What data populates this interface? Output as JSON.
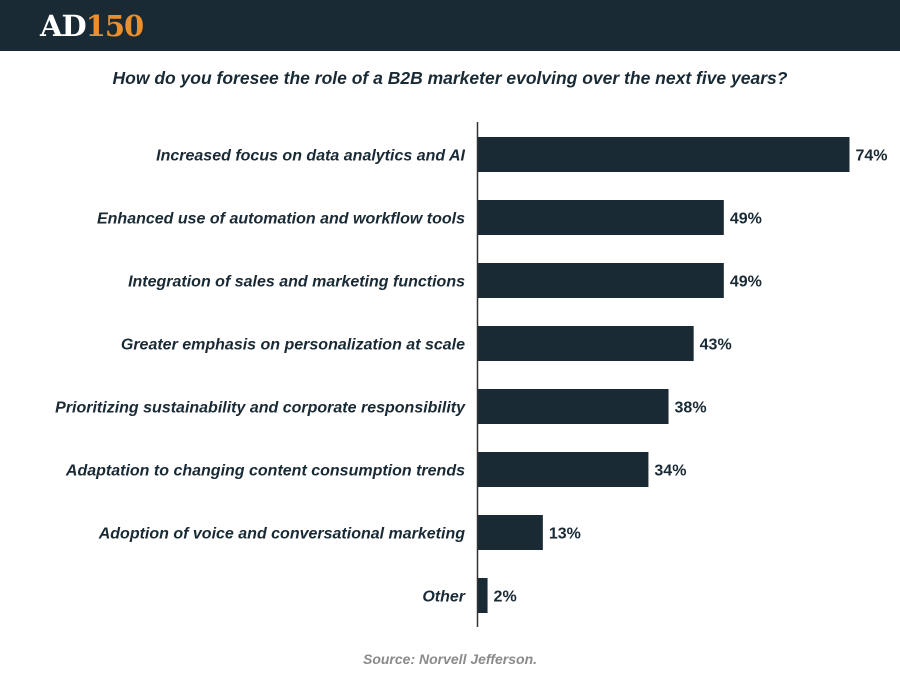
{
  "header": {
    "logo_part1": "AD",
    "logo_part2": "150",
    "logo_colors": {
      "primary": "#ffffff",
      "accent": "#e8902f",
      "background": "#192a35"
    }
  },
  "chart_data": {
    "type": "bar",
    "orientation": "horizontal",
    "title": "How do you foresee the role of a B2B marketer evolving over the next five years?",
    "categories": [
      "Increased focus on data analytics and AI",
      "Enhanced use of automation and workflow tools",
      "Integration of sales and marketing functions",
      "Greater emphasis on personalization at scale",
      "Prioritizing sustainability and corporate responsibility",
      "Adaptation to changing content consumption trends",
      "Adoption of voice and conversational marketing",
      "Other"
    ],
    "values": [
      74,
      49,
      49,
      43,
      38,
      34,
      13,
      2
    ],
    "labels": [
      "74%",
      "49%",
      "49%",
      "43%",
      "38%",
      "34%",
      "13%",
      "2%"
    ],
    "value_unit": "%",
    "xlim": [
      0,
      74
    ],
    "bar_color": "#192a35",
    "grid": false
  },
  "footer": {
    "source": "Source: Norvell Jefferson."
  }
}
